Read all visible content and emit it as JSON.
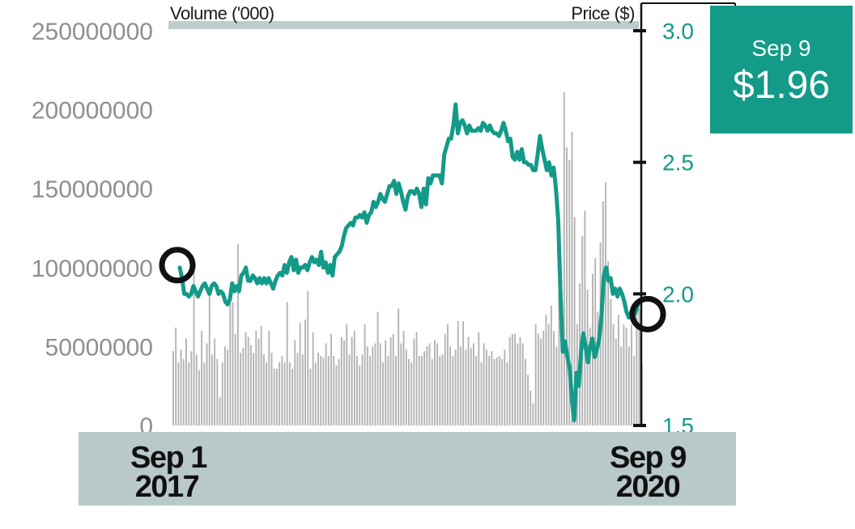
{
  "chart_data": {
    "type": "bar+line",
    "volume_axis": {
      "label": "Volume ('000)",
      "ticks": [
        "250000000",
        "200000000",
        "150000000",
        "100000000",
        "50000000",
        "0"
      ],
      "range": [
        0,
        250000000
      ]
    },
    "price_axis": {
      "label": "Price ($)",
      "ticks": [
        "3.0",
        "2.5",
        "2.0",
        "1.5"
      ],
      "range": [
        1.5,
        3.0
      ]
    },
    "x_labels": {
      "start_line1": "Sep 1",
      "start_line2": "2017",
      "end_line1": "Sep 9",
      "end_line2": "2020"
    },
    "callout": {
      "date": "Sep 9",
      "price": "$1.96"
    },
    "colors": {
      "price_line": "#149a88",
      "volume_bars": "#b4b4b4",
      "callout_bg": "#149a88",
      "date_band": "#b9c8c8",
      "top_band": "#c0cccc"
    },
    "series": [
      {
        "name": "Volume ('000)",
        "kind": "bar",
        "values": [
          47000000,
          62000000,
          40000000,
          48000000,
          42000000,
          55000000,
          40000000,
          47000000,
          98000000,
          45000000,
          35000000,
          60000000,
          40000000,
          52000000,
          86000000,
          45000000,
          55000000,
          42000000,
          18000000,
          40000000,
          50000000,
          48000000,
          87000000,
          78000000,
          58000000,
          115000000,
          46000000,
          49000000,
          59000000,
          56000000,
          51000000,
          46000000,
          60000000,
          55000000,
          63000000,
          45000000,
          40000000,
          60000000,
          46000000,
          36000000,
          36000000,
          40000000,
          44000000,
          40000000,
          78000000,
          40000000,
          36000000,
          54000000,
          46000000,
          65000000,
          45000000,
          67000000,
          85000000,
          36000000,
          59000000,
          40000000,
          46000000,
          44000000,
          43000000,
          52000000,
          44000000,
          58000000,
          44000000,
          38000000,
          42000000,
          56000000,
          54000000,
          64000000,
          45000000,
          56000000,
          60000000,
          44000000,
          38000000,
          45000000,
          64000000,
          50000000,
          44000000,
          50000000,
          52000000,
          72000000,
          52000000,
          40000000,
          54000000,
          44000000,
          56000000,
          58000000,
          44000000,
          74000000,
          52000000,
          60000000,
          48000000,
          42000000,
          40000000,
          55000000,
          59000000,
          44000000,
          44000000,
          47000000,
          50000000,
          52000000,
          42000000,
          54000000,
          52000000,
          44000000,
          45000000,
          58000000,
          64000000,
          50000000,
          44000000,
          48000000,
          66000000,
          50000000,
          66000000,
          48000000,
          56000000,
          49000000,
          52000000,
          44000000,
          59000000,
          40000000,
          52000000,
          48000000,
          44000000,
          47000000,
          42000000,
          43000000,
          44000000,
          42000000,
          48000000,
          40000000,
          56000000,
          58000000,
          58000000,
          52000000,
          56000000,
          52000000,
          42000000,
          32000000,
          22000000,
          14000000,
          64000000,
          58000000,
          55000000,
          60000000,
          70000000,
          64000000,
          76000000,
          60000000,
          50000000,
          100000000,
          92000000,
          211000000,
          176000000,
          168000000,
          186000000,
          132000000,
          64000000,
          90000000,
          120000000,
          136000000,
          86000000,
          62000000,
          96000000,
          106000000,
          72000000,
          116000000,
          142000000,
          154000000,
          104000000,
          80000000,
          64000000,
          55000000,
          70000000,
          50000000,
          64000000,
          62000000,
          50000000,
          64000000,
          44000000,
          76000000,
          74000000,
          38000000
        ]
      },
      {
        "name": "Price ($)",
        "kind": "line",
        "values": [
          2.1,
          2.06,
          2.0,
          2.0,
          1.99,
          2.0,
          2.03,
          2.01,
          1.99,
          2.01,
          2.03,
          2.04,
          2.02,
          2.0,
          2.03,
          2.04,
          2.03,
          2.0,
          2.01,
          2.0,
          1.97,
          1.96,
          1.98,
          2.04,
          2.01,
          2.03,
          2.01,
          2.07,
          2.08,
          2.1,
          2.05,
          2.05,
          2.07,
          2.06,
          2.04,
          2.06,
          2.04,
          2.06,
          2.04,
          2.06,
          2.04,
          2.02,
          2.05,
          2.07,
          2.08,
          2.07,
          2.11,
          2.08,
          2.12,
          2.14,
          2.09,
          2.13,
          2.08,
          2.1,
          2.1,
          2.11,
          2.09,
          2.12,
          2.14,
          2.12,
          2.13,
          2.11,
          2.16,
          2.1,
          2.12,
          2.08,
          2.11,
          2.07,
          2.14,
          2.15,
          2.16,
          2.18,
          2.22,
          2.25,
          2.26,
          2.27,
          2.26,
          2.29,
          2.29,
          2.3,
          2.29,
          2.31,
          2.27,
          2.3,
          2.31,
          2.35,
          2.33,
          2.35,
          2.38,
          2.36,
          2.35,
          2.38,
          2.41,
          2.41,
          2.43,
          2.38,
          2.42,
          2.39,
          2.35,
          2.32,
          2.37,
          2.39,
          2.39,
          2.38,
          2.4,
          2.38,
          2.33,
          2.4,
          2.34,
          2.44,
          2.42,
          2.45,
          2.45,
          2.45,
          2.45,
          2.42,
          2.53,
          2.56,
          2.59,
          2.59,
          2.64,
          2.72,
          2.61,
          2.65,
          2.66,
          2.64,
          2.61,
          2.64,
          2.62,
          2.62,
          2.62,
          2.63,
          2.62,
          2.65,
          2.64,
          2.62,
          2.64,
          2.62,
          2.61,
          2.61,
          2.6,
          2.62,
          2.65,
          2.62,
          2.58,
          2.59,
          2.52,
          2.51,
          2.54,
          2.51,
          2.55,
          2.5,
          2.5,
          2.49,
          2.49,
          2.47,
          2.47,
          2.53,
          2.6,
          2.55,
          2.51,
          2.47,
          2.5,
          2.45,
          2.48,
          2.4,
          2.28,
          2.0,
          1.78,
          1.82,
          1.76,
          1.72,
          1.6,
          1.52,
          1.7,
          1.65,
          1.78,
          1.85,
          1.8,
          1.74,
          1.8,
          1.83,
          1.76,
          1.79,
          1.83,
          1.92,
          2.07,
          2.1,
          2.05,
          2.06,
          2.0,
          2.02,
          1.99,
          2.02,
          2.0,
          1.97,
          1.93,
          1.91,
          1.93,
          1.92,
          1.93,
          1.96
        ]
      }
    ]
  }
}
